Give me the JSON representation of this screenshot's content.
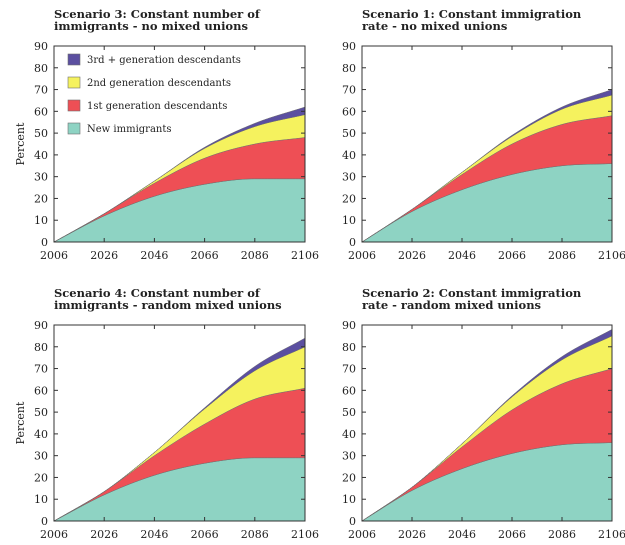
{
  "colors": {
    "new_immigrants": "#8ed3c3",
    "first_gen": "#ee4f55",
    "second_gen": "#f5f25e",
    "third_gen": "#5b4fa0",
    "edge": "#6f6f6f"
  },
  "legend": [
    {
      "key": "third_gen",
      "label": "3rd + generation descendants"
    },
    {
      "key": "second_gen",
      "label": "2nd  generation descendants"
    },
    {
      "key": "first_gen",
      "label": "1st generation descendants"
    },
    {
      "key": "new_immigrants",
      "label": "New immigrants"
    }
  ],
  "chart_data": [
    {
      "type": "area",
      "stacked": true,
      "title_lines": [
        "Scenario 3: Constant number of",
        "immigrants - no mixed unions"
      ],
      "ylabel": "Percent",
      "x": [
        2006,
        2026,
        2046,
        2066,
        2086,
        2106
      ],
      "xticks": [
        2006,
        2026,
        2046,
        2066,
        2086,
        2106
      ],
      "yticks": [
        0,
        10,
        20,
        30,
        40,
        50,
        60,
        70,
        80,
        90
      ],
      "xlim": [
        2006,
        2106
      ],
      "ylim": [
        0,
        90
      ],
      "legend": "top-left",
      "series": [
        {
          "key": "new_immigrants",
          "name": "New immigrants",
          "values": [
            0,
            12,
            21,
            26.5,
            29,
            29
          ]
        },
        {
          "key": "first_gen",
          "name": "1st generation descendants",
          "values": [
            0,
            1,
            6,
            12,
            16,
            19
          ]
        },
        {
          "key": "second_gen",
          "name": "2nd  generation descendants",
          "values": [
            0,
            0,
            1,
            4.5,
            8,
            10.5
          ]
        },
        {
          "key": "third_gen",
          "name": "3rd + generation descendants",
          "values": [
            0,
            0,
            0,
            0.5,
            1.5,
            3.5
          ]
        }
      ]
    },
    {
      "type": "area",
      "stacked": true,
      "title_lines": [
        "Scenario 1: Constant immigration",
        "rate - no mixed unions"
      ],
      "ylabel": "",
      "x": [
        2006,
        2026,
        2046,
        2066,
        2086,
        2106
      ],
      "xticks": [
        2006,
        2026,
        2046,
        2066,
        2086,
        2106
      ],
      "yticks": [
        0,
        10,
        20,
        30,
        40,
        50,
        60,
        70,
        80,
        90
      ],
      "xlim": [
        2006,
        2106
      ],
      "ylim": [
        0,
        90
      ],
      "legend": "none",
      "series": [
        {
          "key": "new_immigrants",
          "name": "New immigrants",
          "values": [
            0,
            14,
            24,
            31,
            35,
            36
          ]
        },
        {
          "key": "first_gen",
          "name": "1st generation descendants",
          "values": [
            0,
            1,
            7,
            14,
            19,
            22
          ]
        },
        {
          "key": "second_gen",
          "name": "2nd  generation descendants",
          "values": [
            0,
            0,
            1,
            3.5,
            7,
            9.5
          ]
        },
        {
          "key": "third_gen",
          "name": "3rd + generation descendants",
          "values": [
            0,
            0,
            0,
            0.5,
            1,
            2.5
          ]
        }
      ]
    },
    {
      "type": "area",
      "stacked": true,
      "title_lines": [
        "Scenario 4: Constant number of",
        "immigrants - random mixed unions"
      ],
      "ylabel": "Percent",
      "x": [
        2006,
        2026,
        2046,
        2066,
        2086,
        2106
      ],
      "xticks": [
        2006,
        2026,
        2046,
        2066,
        2086,
        2106
      ],
      "yticks": [
        0,
        10,
        20,
        30,
        40,
        50,
        60,
        70,
        80,
        90
      ],
      "xlim": [
        2006,
        2106
      ],
      "ylim": [
        0,
        90
      ],
      "legend": "none",
      "series": [
        {
          "key": "new_immigrants",
          "name": "New immigrants",
          "values": [
            0,
            12,
            21,
            26.5,
            29,
            29
          ]
        },
        {
          "key": "first_gen",
          "name": "1st generation descendants",
          "values": [
            0,
            1.5,
            9,
            18,
            27,
            32
          ]
        },
        {
          "key": "second_gen",
          "name": "2nd  generation descendants",
          "values": [
            0,
            0,
            1.5,
            7,
            13,
            19
          ]
        },
        {
          "key": "third_gen",
          "name": "3rd + generation descendants",
          "values": [
            0,
            0,
            0,
            0.5,
            2,
            4
          ]
        }
      ]
    },
    {
      "type": "area",
      "stacked": true,
      "title_lines": [
        "Scenario 2: Constant immigration",
        "rate - random mixed unions"
      ],
      "ylabel": "",
      "x": [
        2006,
        2026,
        2046,
        2066,
        2086,
        2106
      ],
      "xticks": [
        2006,
        2026,
        2046,
        2066,
        2086,
        2106
      ],
      "yticks": [
        0,
        10,
        20,
        30,
        40,
        50,
        60,
        70,
        80,
        90
      ],
      "xlim": [
        2006,
        2106
      ],
      "ylim": [
        0,
        90
      ],
      "legend": "none",
      "series": [
        {
          "key": "new_immigrants",
          "name": "New immigrants",
          "values": [
            0,
            14,
            24,
            31,
            35,
            36
          ]
        },
        {
          "key": "first_gen",
          "name": "1st generation descendants",
          "values": [
            0,
            1.5,
            10,
            20,
            28,
            34
          ]
        },
        {
          "key": "second_gen",
          "name": "2nd  generation descendants",
          "values": [
            0,
            0,
            1.5,
            6,
            11,
            15
          ]
        },
        {
          "key": "third_gen",
          "name": "3rd + generation descendants",
          "values": [
            0,
            0,
            0,
            0.5,
            1.5,
            3
          ]
        }
      ]
    }
  ]
}
